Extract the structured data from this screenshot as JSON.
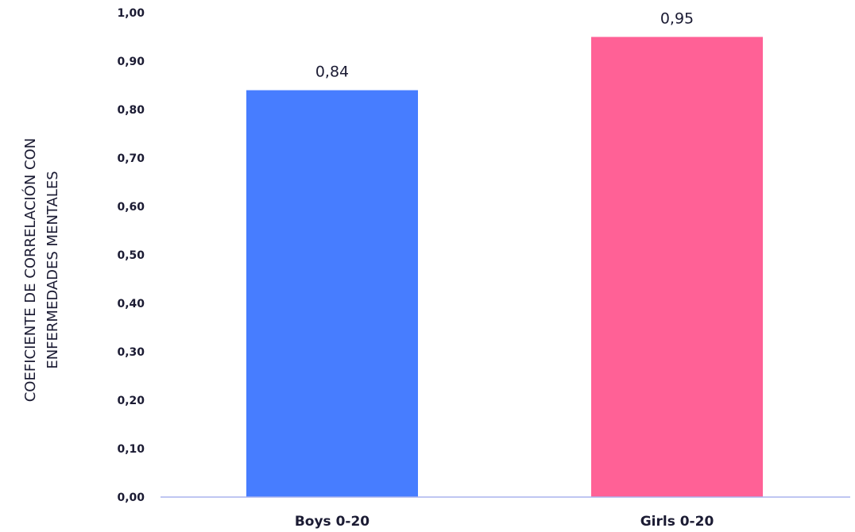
{
  "chart_data": {
    "type": "bar",
    "title": "",
    "xlabel": "",
    "ylabel_lines": [
      "COEFICIENTE DE CORRELACIÓN CON",
      "ENFERMEDADES MENTALES"
    ],
    "categories": [
      "Boys 0-20",
      "Girls 0-20"
    ],
    "values": [
      0.84,
      0.95
    ],
    "value_labels": [
      "0,84",
      "0,95"
    ],
    "bar_colors": [
      "#477dff",
      "#ff6196"
    ],
    "ylim": [
      0,
      1
    ],
    "yticks": [
      0,
      0.1,
      0.2,
      0.3,
      0.4,
      0.5,
      0.6,
      0.7,
      0.8,
      0.9,
      1.0
    ],
    "ytick_labels": [
      "0,00",
      "0,10",
      "0,20",
      "0,30",
      "0,40",
      "0,50",
      "0,60",
      "0,70",
      "0,80",
      "0,90",
      "1,00"
    ],
    "grid": false,
    "legend": "none",
    "axis_color": "#aab4ee"
  }
}
